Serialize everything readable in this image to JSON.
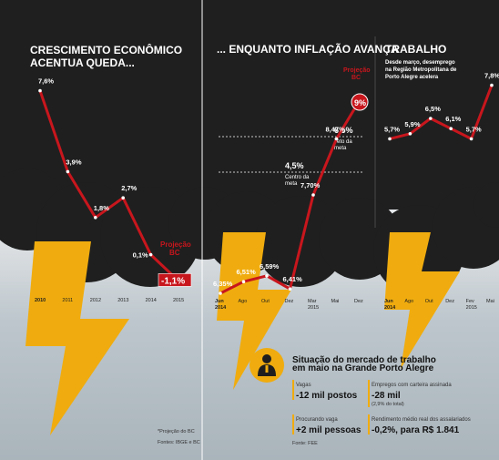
{
  "colors": {
    "line": "#c8161d",
    "cloud": "#1f1f1f",
    "bolt": "#f0ac0e",
    "text_light": "#ffffff"
  },
  "icons": [
    "worker-icon"
  ],
  "panels": [
    {
      "title_lines": [
        "CRESCIMENTO ECONÔMICO",
        "ACENTUA QUEDA..."
      ],
      "projection_label_lines": [
        "Projeção",
        "BC"
      ]
    },
    {
      "title_lines": [
        "... ENQUANTO INFLAÇÃO AVANÇA"
      ],
      "projection_label_lines": [
        "Projeção",
        "BC"
      ],
      "ref_lines": [
        {
          "value": "6,5%",
          "label_lines": [
            "Teto da",
            "meta"
          ]
        },
        {
          "value": "4,5%",
          "label_lines": [
            "Centro da",
            "meta"
          ]
        }
      ]
    },
    {
      "title_lines": [
        "TRABALHO"
      ],
      "subtitle_lines": [
        "Desde março, desemprego",
        "na Região Metropolitana de",
        "Porto Alegre acelera"
      ]
    }
  ],
  "chart_data": [
    {
      "type": "line",
      "title": "CRESCIMENTO ECONÔMICO ACENTUA QUEDA...",
      "x": [
        "2010",
        "2011",
        "2012",
        "2013",
        "2014",
        "2015"
      ],
      "values": [
        7.6,
        3.9,
        1.8,
        2.7,
        0.1,
        -1.1
      ],
      "labels": [
        "7,6%",
        "3,9%",
        "1,8%",
        "2,7%",
        "0,1%",
        "-1,1%"
      ],
      "projected_index": 5,
      "ylim": [
        -2,
        8
      ]
    },
    {
      "type": "line",
      "title": "... ENQUANTO INFLAÇÃO AVANÇA",
      "x": [
        "Jun 2014",
        "Ago",
        "Out",
        "Dez",
        "Mar 2015",
        "Mai",
        "Dez"
      ],
      "tick_labels": [
        [
          "Jun",
          "2014"
        ],
        [
          "Ago"
        ],
        [
          "Out"
        ],
        [
          "Dez"
        ],
        [
          "Mar",
          "2015"
        ],
        [
          "Mai"
        ],
        [
          "Dez"
        ]
      ],
      "values": [
        6.35,
        6.51,
        6.59,
        6.41,
        7.7,
        8.47,
        9.0
      ],
      "labels": [
        "6,35%",
        "6,51%",
        "6,59%",
        "6,41%",
        "7,70%",
        "8,47%",
        "9%"
      ],
      "projected_index": 6,
      "reference_lines": [
        {
          "value": 6.5,
          "label": "Teto da meta"
        },
        {
          "value": 4.5,
          "label": "Centro da meta"
        }
      ],
      "ylim": [
        3,
        10
      ]
    },
    {
      "type": "line",
      "title": "TRABALHO",
      "x": [
        "Jun 2014",
        "Ago",
        "Out",
        "Dez",
        "Fev 2015",
        "Mai"
      ],
      "tick_labels": [
        [
          "Jun",
          "2014"
        ],
        [
          "Ago"
        ],
        [
          "Out"
        ],
        [
          "Dez"
        ],
        [
          "Fev",
          "2015"
        ],
        [
          "Mai"
        ]
      ],
      "values": [
        5.7,
        5.9,
        6.5,
        6.1,
        5.7,
        7.8
      ],
      "labels": [
        "5,7%",
        "5,9%",
        "6,5%",
        "6,1%",
        "5,7%",
        "7,8%"
      ],
      "ylim": [
        4,
        9
      ]
    }
  ],
  "employment_box": {
    "title_lines": [
      "Situação do mercado de trabalho",
      "em maio na Grande Porto Alegre"
    ],
    "items": [
      {
        "label": "Vagas",
        "value": "-12 mil postos"
      },
      {
        "label": "Empregos com carteira assinada",
        "value": "-28 mil",
        "note": "(2,9% do total)"
      },
      {
        "label": "Procurando vaga",
        "value": "+2 mil pessoas"
      },
      {
        "label": "Rendimento médio real dos assalariados",
        "value": "-0,2%, para R$ 1.841"
      }
    ],
    "source": "Fonte: FEE"
  },
  "notes": {
    "projection_footnote": "*Projeção do BC",
    "source_left": "Fontes: IBGE e BC"
  }
}
